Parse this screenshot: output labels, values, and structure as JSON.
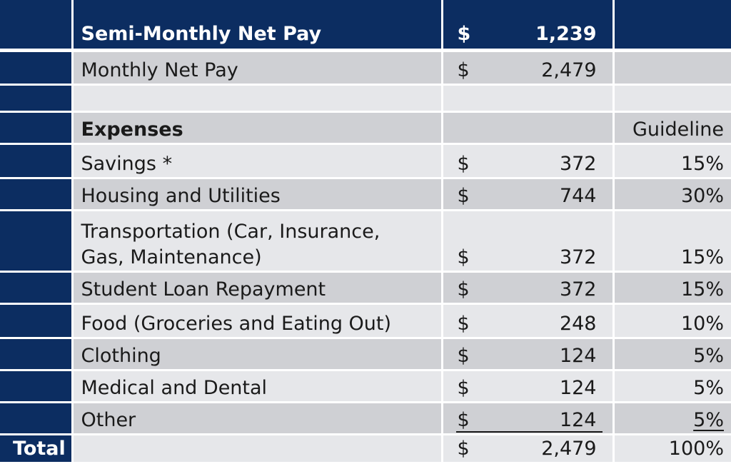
{
  "header": {
    "label": "Semi-Monthly Net Pay",
    "currency": "$",
    "amount": "1,239"
  },
  "monthly": {
    "label": "Monthly Net Pay",
    "currency": "$",
    "amount": "2,479"
  },
  "expenses_header": {
    "label": "Expenses",
    "guideline": "Guideline"
  },
  "expenses": [
    {
      "label": "Savings *",
      "currency": "$",
      "amount": "372",
      "guideline": "15%"
    },
    {
      "label": "Housing and Utilities",
      "currency": "$",
      "amount": "744",
      "guideline": "30%"
    },
    {
      "label": "Transportation (Car, Insurance, Gas, Maintenance)",
      "currency": "$",
      "amount": "372",
      "guideline": "15%"
    },
    {
      "label": "Student Loan Repayment",
      "currency": "$",
      "amount": "372",
      "guideline": "15%"
    },
    {
      "label": "Food (Groceries and Eating Out)",
      "currency": "$",
      "amount": "248",
      "guideline": "10%"
    },
    {
      "label": "Clothing",
      "currency": "$",
      "amount": "124",
      "guideline": "5%"
    },
    {
      "label": "Medical and Dental",
      "currency": "$",
      "amount": "124",
      "guideline": "5%"
    },
    {
      "label": "Other",
      "currency": "$",
      "amount": "124",
      "guideline": "5%"
    }
  ],
  "total": {
    "label": "Total",
    "currency": "$",
    "amount": "2,479",
    "guideline": "100%"
  },
  "colors": {
    "navy": "#0c2d61",
    "row_dark": "#cfd0d4",
    "row_light": "#e6e7ea"
  }
}
